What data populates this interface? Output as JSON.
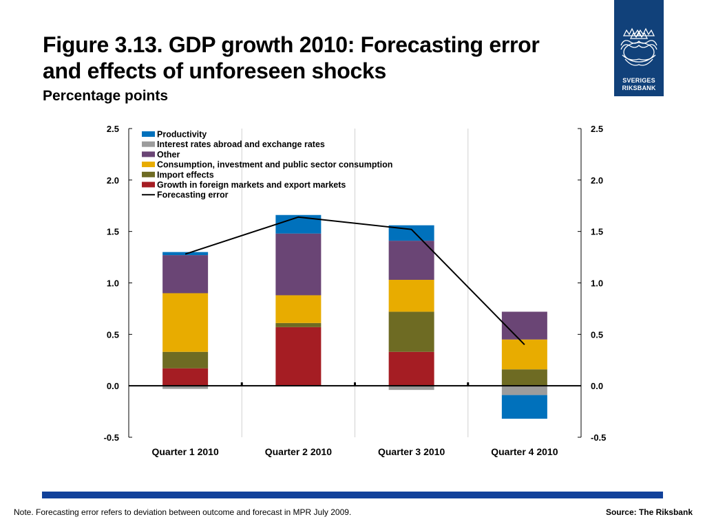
{
  "title_line1": "Figure 3.13. GDP growth 2010: Forecasting error",
  "title_line2": "and effects of unforeseen shocks",
  "subtitle": "Percentage points",
  "logo": {
    "line1": "SVERIGES",
    "line2": "RIKSBANK"
  },
  "note": "Note. Forecasting error refers to deviation between outcome and forecast in MPR July 2009.",
  "source": "Source: The Riksbank",
  "chart_data": {
    "type": "bar",
    "stacked": true,
    "categories": [
      "Quarter 1 2010",
      "Quarter 2 2010",
      "Quarter 3 2010",
      "Quarter 4 2010"
    ],
    "ylim": [
      -0.5,
      2.5
    ],
    "yticks": [
      "2.5",
      "2.0",
      "1.5",
      "1.0",
      "0.5",
      "0.0",
      "-0.5"
    ],
    "legend_position": "top-left",
    "series": [
      {
        "name": "Growth in foreign markets and export markets",
        "color": "#a51d23",
        "values": [
          0.17,
          0.57,
          0.33,
          0.0
        ]
      },
      {
        "name": "Import effects",
        "color": "#6e6b23",
        "values": [
          0.16,
          0.04,
          0.39,
          0.16
        ]
      },
      {
        "name": "Consumption, investment and public sector consumption",
        "color": "#e8ac00",
        "values": [
          0.57,
          0.27,
          0.31,
          0.29
        ]
      },
      {
        "name": "Other",
        "color": "#6a4575",
        "values": [
          0.37,
          0.6,
          0.38,
          0.27
        ]
      },
      {
        "name": "Interest rates abroad and exchange rates",
        "color": "#9c9c9c",
        "values": [
          -0.03,
          0.0,
          -0.04,
          -0.09
        ]
      },
      {
        "name": "Productivity",
        "color": "#0071bc",
        "values": [
          0.03,
          0.18,
          0.15,
          -0.23
        ]
      }
    ],
    "legend_order": [
      "Productivity",
      "Interest rates abroad and exchange rates",
      "Other",
      "Consumption, investment and public sector consumption",
      "Import effects",
      "Growth in foreign markets and export markets",
      "Forecasting error"
    ],
    "line": {
      "name": "Forecasting error",
      "color": "#000000",
      "values": [
        1.28,
        1.64,
        1.52,
        0.4
      ]
    }
  }
}
